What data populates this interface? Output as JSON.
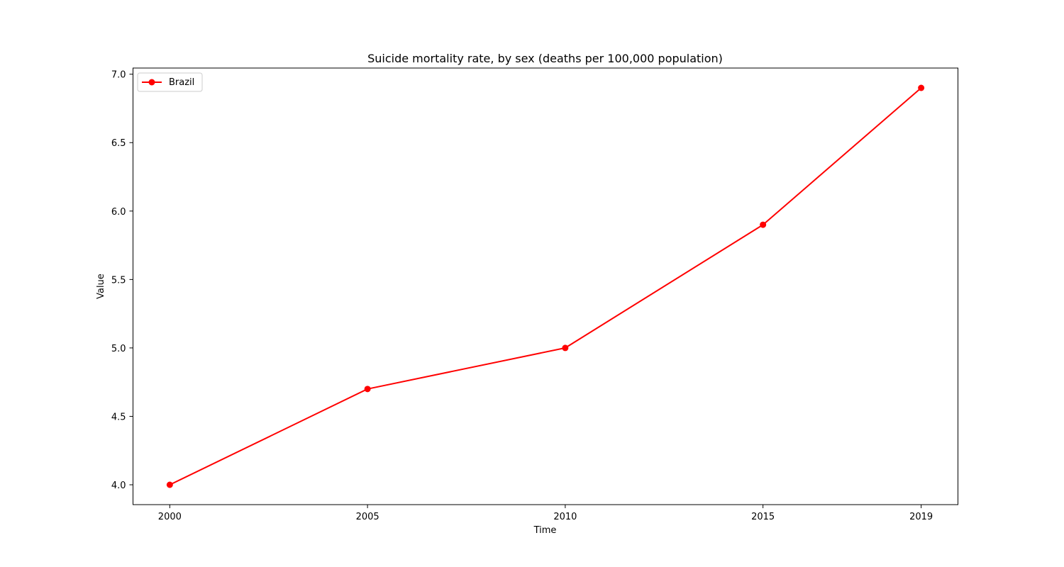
{
  "chart_data": {
    "type": "line",
    "title": "Suicide mortality rate, by sex (deaths per 100,000 population)",
    "xlabel": "Time",
    "ylabel": "Value",
    "x": [
      2000,
      2005,
      2010,
      2015,
      2019
    ],
    "x_tick_labels": [
      "2000",
      "2005",
      "2010",
      "2015",
      "2019"
    ],
    "y_ticks": [
      4.0,
      4.5,
      5.0,
      5.5,
      6.0,
      6.5,
      7.0
    ],
    "y_tick_labels": [
      "4.0",
      "4.5",
      "5.0",
      "5.5",
      "6.0",
      "6.5",
      "7.0"
    ],
    "xlim": [
      1999.07,
      2019.93
    ],
    "ylim": [
      3.855,
      7.045
    ],
    "grid": false,
    "legend_position": "top-left",
    "series": [
      {
        "name": "Brazil",
        "color": "#ff0000",
        "marker": "circle",
        "values": [
          4.0,
          4.7,
          5.0,
          5.9,
          6.9
        ]
      }
    ]
  }
}
